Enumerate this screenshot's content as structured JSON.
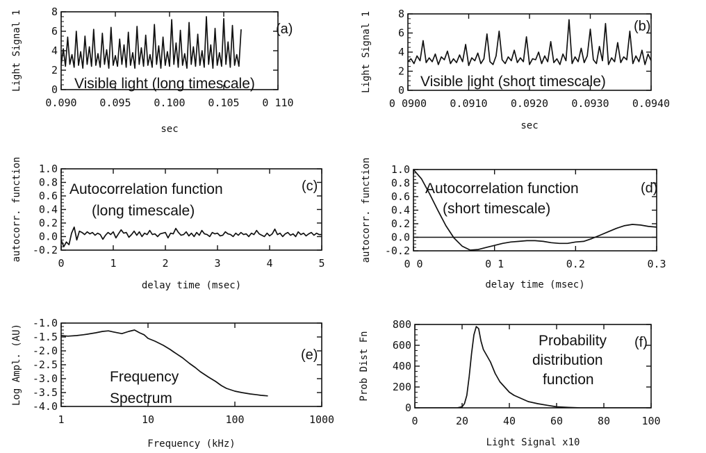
{
  "chart_data": [
    {
      "id": "a",
      "type": "line",
      "panel_label": "(a)",
      "annotation": [
        "Visible light (long timescale)"
      ],
      "xlabel": "sec",
      "ylabel": "Light Signal 1",
      "xlim": [
        0.09,
        0.11
      ],
      "ylim": [
        0,
        8
      ],
      "xticks": [
        "0.090",
        "0.095",
        "0.100",
        "0.105",
        "0 110"
      ],
      "xtickvals": [
        0.09,
        0.095,
        0.1,
        0.105,
        0.11
      ],
      "yticks": [
        "0",
        "2",
        "4",
        "6",
        "8"
      ],
      "ytickvals": [
        0,
        2,
        4,
        6,
        8
      ],
      "series": [
        {
          "x": [
            0.09,
            0.0902,
            0.0904,
            0.0906,
            0.0908,
            0.091,
            0.0912,
            0.0914,
            0.0916,
            0.0918,
            0.092,
            0.0922,
            0.0924,
            0.0926,
            0.0928,
            0.093,
            0.0932,
            0.0934,
            0.0936,
            0.0938,
            0.094,
            0.0942,
            0.0944,
            0.0946,
            0.0948,
            0.095,
            0.0952,
            0.0954,
            0.0956,
            0.0958,
            0.096,
            0.0962,
            0.0964,
            0.0966,
            0.0968,
            0.097,
            0.0972,
            0.0974,
            0.0976,
            0.0978,
            0.098,
            0.0982,
            0.0984,
            0.0986,
            0.0988,
            0.099,
            0.0992,
            0.0994,
            0.0996,
            0.0998,
            0.1,
            0.1002,
            0.1004,
            0.1006,
            0.1008,
            0.101,
            0.1012,
            0.1014,
            0.1016,
            0.1018,
            0.102,
            0.1022,
            0.1024,
            0.1026,
            0.1028,
            0.103,
            0.1032,
            0.1034,
            0.1036,
            0.1038,
            0.104,
            0.1042,
            0.1044,
            0.1046,
            0.1048,
            0.105,
            0.1052,
            0.1054,
            0.1056,
            0.1058,
            0.106,
            0.1062,
            0.1064,
            0.1066
          ],
          "y": [
            2.5,
            4.2,
            2.4,
            5.4,
            2.6,
            3.6,
            2.3,
            6.0,
            2.5,
            3.9,
            2.2,
            5.5,
            2.6,
            4.4,
            2.4,
            6.2,
            2.5,
            3.7,
            2.3,
            5.8,
            2.6,
            4.1,
            2.2,
            6.4,
            2.5,
            3.5,
            2.4,
            5.2,
            2.6,
            4.6,
            2.3,
            5.9,
            2.5,
            3.8,
            2.2,
            6.5,
            2.6,
            4.3,
            2.4,
            5.6,
            2.5,
            3.6,
            2.3,
            6.7,
            2.6,
            4.5,
            2.2,
            5.4,
            2.5,
            3.9,
            2.4,
            7.2,
            2.6,
            4.8,
            2.3,
            6.1,
            2.5,
            3.7,
            2.2,
            6.9,
            2.6,
            4.4,
            2.4,
            5.7,
            2.5,
            4.0,
            2.3,
            7.5,
            2.6,
            4.6,
            2.2,
            6.3,
            2.5,
            3.8,
            2.4,
            7.3,
            2.6,
            4.9,
            2.3,
            6.6,
            2.5,
            3.6,
            2.4,
            6.2
          ]
        }
      ]
    },
    {
      "id": "b",
      "type": "line",
      "panel_label": "(b)",
      "annotation": [
        "Visible light (short timescale)"
      ],
      "xlabel": "sec",
      "ylabel": "Light Signal 1",
      "xlim": [
        0.09,
        0.094
      ],
      "ylim": [
        0,
        8
      ],
      "xticks": [
        "0 0900",
        "0.0910",
        "0.0920",
        "0.0930",
        "0.0940"
      ],
      "xtickvals": [
        0.09,
        0.091,
        0.092,
        0.093,
        0.094
      ],
      "yticks": [
        "0",
        "2",
        "4",
        "6",
        "8"
      ],
      "ytickvals": [
        0,
        2,
        4,
        6,
        8
      ],
      "series": [
        {
          "x": [
            0.09,
            0.09005,
            0.0901,
            0.09015,
            0.0902,
            0.09025,
            0.0903,
            0.09035,
            0.0904,
            0.09045,
            0.0905,
            0.09055,
            0.0906,
            0.09065,
            0.0907,
            0.09075,
            0.0908,
            0.09085,
            0.0909,
            0.09095,
            0.091,
            0.09105,
            0.0911,
            0.09115,
            0.0912,
            0.09125,
            0.0913,
            0.09135,
            0.0914,
            0.09145,
            0.0915,
            0.09155,
            0.0916,
            0.09165,
            0.0917,
            0.09175,
            0.0918,
            0.09185,
            0.0919,
            0.09195,
            0.092,
            0.09205,
            0.0921,
            0.09215,
            0.0922,
            0.09225,
            0.0923,
            0.09235,
            0.0924,
            0.09245,
            0.0925,
            0.09255,
            0.0926,
            0.09265,
            0.0927,
            0.09275,
            0.0928,
            0.09285,
            0.0929,
            0.09295,
            0.093,
            0.09305,
            0.0931,
            0.09315,
            0.0932,
            0.09325,
            0.0933,
            0.09335,
            0.0934,
            0.09345,
            0.0935,
            0.09355,
            0.0936,
            0.09365,
            0.0937,
            0.09375,
            0.0938,
            0.09385,
            0.0939,
            0.09395,
            0.094
          ],
          "y": [
            3.0,
            3.3,
            2.8,
            3.6,
            3.1,
            5.2,
            2.9,
            3.4,
            3.0,
            3.8,
            2.7,
            3.5,
            3.2,
            4.1,
            2.8,
            3.3,
            2.9,
            3.7,
            3.0,
            4.8,
            2.6,
            3.4,
            3.1,
            3.9,
            2.8,
            3.3,
            5.9,
            3.0,
            2.7,
            3.6,
            6.2,
            3.2,
            2.8,
            3.5,
            3.1,
            4.2,
            2.9,
            3.4,
            3.0,
            5.6,
            2.7,
            3.3,
            3.2,
            4.0,
            2.8,
            3.6,
            3.0,
            5.1,
            2.9,
            3.3,
            2.7,
            3.8,
            3.1,
            7.4,
            2.8,
            3.5,
            3.0,
            4.4,
            2.9,
            3.6,
            6.4,
            3.2,
            2.8,
            4.6,
            3.1,
            7.0,
            2.7,
            3.4,
            3.0,
            5.0,
            2.9,
            3.5,
            3.2,
            6.2,
            2.8,
            3.6,
            3.0,
            4.2,
            2.7,
            3.8,
            3.1
          ]
        }
      ]
    },
    {
      "id": "c",
      "type": "line",
      "panel_label": "(c)",
      "annotation": [
        "Autocorrelation function",
        "(long timescale)"
      ],
      "xlabel": "delay time (msec)",
      "ylabel": "autocorr. function",
      "xlim": [
        0,
        5
      ],
      "ylim": [
        -0.2,
        1.0
      ],
      "xticks": [
        "0",
        "1",
        "2",
        "3",
        "4",
        "5"
      ],
      "xtickvals": [
        0,
        1,
        2,
        3,
        4,
        5
      ],
      "yticks": [
        "-0.2",
        "0.0",
        "0.2",
        "0.4",
        "0.6",
        "0.8",
        "1.0"
      ],
      "ytickvals": [
        -0.2,
        0,
        0.2,
        0.4,
        0.6,
        0.8,
        1.0
      ],
      "series": [
        {
          "x": [
            0,
            0.05,
            0.1,
            0.15,
            0.2,
            0.25,
            0.3,
            0.35,
            0.4,
            0.45,
            0.5,
            0.55,
            0.6,
            0.65,
            0.7,
            0.75,
            0.8,
            0.85,
            0.9,
            0.95,
            1.0,
            1.05,
            1.1,
            1.15,
            1.2,
            1.25,
            1.3,
            1.35,
            1.4,
            1.45,
            1.5,
            1.55,
            1.6,
            1.65,
            1.7,
            1.75,
            1.8,
            1.85,
            1.9,
            1.95,
            2.0,
            2.05,
            2.1,
            2.15,
            2.2,
            2.25,
            2.3,
            2.35,
            2.4,
            2.45,
            2.5,
            2.55,
            2.6,
            2.65,
            2.7,
            2.75,
            2.8,
            2.85,
            2.9,
            2.95,
            3.0,
            3.05,
            3.1,
            3.15,
            3.2,
            3.25,
            3.3,
            3.35,
            3.4,
            3.45,
            3.5,
            3.55,
            3.6,
            3.65,
            3.7,
            3.75,
            3.8,
            3.85,
            3.9,
            3.95,
            4.0,
            4.05,
            4.1,
            4.15,
            4.2,
            4.25,
            4.3,
            4.35,
            4.4,
            4.45,
            4.5,
            4.55,
            4.6,
            4.65,
            4.7,
            4.75,
            4.8,
            4.85,
            4.9,
            4.95,
            5.0
          ],
          "y": [
            -0.05,
            -0.15,
            -0.08,
            -0.12,
            0.05,
            0.14,
            -0.05,
            0.08,
            0.06,
            0.03,
            0.07,
            0.04,
            0.06,
            0.02,
            0.05,
            0.03,
            -0.04,
            0.02,
            0.06,
            0.03,
            0.07,
            -0.02,
            0.04,
            0.1,
            0.05,
            0.06,
            -0.01,
            0.03,
            0.08,
            0.02,
            0.07,
            0.0,
            0.05,
            0.03,
            0.09,
            0.03,
            0.04,
            0.0,
            0.04,
            0.05,
            0.06,
            -0.02,
            0.05,
            0.04,
            0.12,
            0.06,
            0.02,
            0.03,
            0.07,
            0.01,
            0.05,
            0.0,
            0.06,
            0.02,
            0.09,
            0.04,
            0.03,
            0.0,
            0.06,
            0.04,
            0.05,
            0.01,
            0.02,
            0.07,
            0.04,
            0.03,
            0.0,
            0.05,
            0.02,
            0.06,
            0.03,
            0.04,
            0.0,
            0.05,
            0.03,
            0.09,
            0.04,
            0.02,
            0.0,
            0.05,
            0.01,
            0.04,
            0.11,
            0.03,
            0.05,
            0.0,
            0.04,
            0.06,
            0.02,
            0.04,
            0.0,
            0.07,
            0.03,
            0.05,
            0.01,
            0.04,
            0.06,
            0.02,
            0.05,
            0.03,
            0.03
          ]
        }
      ]
    },
    {
      "id": "d",
      "type": "line",
      "panel_label": "(d)",
      "annotation": [
        "Autocorrelation function",
        "(short timescale)"
      ],
      "xlabel": "delay time (msec)",
      "ylabel": "autocorr. function",
      "xlim": [
        0,
        0.3
      ],
      "ylim": [
        -0.2,
        1.0
      ],
      "xticks": [
        "0 0",
        "0 1",
        "0.2",
        "0.3"
      ],
      "xtickvals": [
        0,
        0.1,
        0.2,
        0.3
      ],
      "yticks": [
        "-0.2",
        "0.0",
        "0.2",
        "0.4",
        "0.6",
        "0.8",
        "1.0"
      ],
      "ytickvals": [
        -0.2,
        0,
        0.2,
        0.4,
        0.6,
        0.8,
        1.0
      ],
      "hline": 0,
      "series": [
        {
          "x": [
            0,
            0.01,
            0.02,
            0.03,
            0.04,
            0.05,
            0.06,
            0.07,
            0.08,
            0.09,
            0.1,
            0.11,
            0.12,
            0.13,
            0.14,
            0.15,
            0.16,
            0.17,
            0.18,
            0.19,
            0.2,
            0.21,
            0.22,
            0.23,
            0.24,
            0.25,
            0.26,
            0.27,
            0.28,
            0.29,
            0.3
          ],
          "y": [
            1.0,
            0.86,
            0.64,
            0.4,
            0.17,
            -0.01,
            -0.13,
            -0.19,
            -0.18,
            -0.15,
            -0.12,
            -0.09,
            -0.07,
            -0.06,
            -0.05,
            -0.05,
            -0.06,
            -0.08,
            -0.09,
            -0.09,
            -0.07,
            -0.06,
            -0.02,
            0.03,
            0.08,
            0.13,
            0.17,
            0.19,
            0.18,
            0.16,
            0.15
          ]
        }
      ]
    },
    {
      "id": "e",
      "type": "line",
      "panel_label": "(e)",
      "annotation": [
        "Frequency",
        "Spectrum"
      ],
      "xlabel": "Frequency (kHz)",
      "ylabel": "Log Ampl. (AU)",
      "xscale": "log",
      "xlim": [
        1,
        1000
      ],
      "ylim": [
        -4.0,
        -1.0
      ],
      "xticks": [
        "1",
        "10",
        "100",
        "1000"
      ],
      "xtickvals": [
        1,
        10,
        100,
        1000
      ],
      "yticks": [
        "-4.0",
        "-3.5",
        "-3.0",
        "-2.5",
        "-2.0",
        "-1.5",
        "-1.0"
      ],
      "ytickvals": [
        -4.0,
        -3.5,
        -3.0,
        -2.5,
        -2.0,
        -1.5,
        -1.0
      ],
      "series": [
        {
          "x": [
            1.0,
            1.2,
            1.5,
            1.8,
            2.0,
            2.5,
            3.0,
            3.5,
            4.0,
            5.0,
            6.0,
            7.0,
            8.0,
            9.0,
            10,
            12,
            15,
            18,
            20,
            25,
            30,
            35,
            40,
            50,
            60,
            70,
            80,
            100,
            120,
            150,
            180,
            200,
            240
          ],
          "y": [
            -1.45,
            -1.47,
            -1.45,
            -1.42,
            -1.4,
            -1.35,
            -1.3,
            -1.28,
            -1.32,
            -1.38,
            -1.3,
            -1.25,
            -1.35,
            -1.42,
            -1.55,
            -1.65,
            -1.8,
            -1.95,
            -2.05,
            -2.25,
            -2.45,
            -2.6,
            -2.75,
            -2.95,
            -3.1,
            -3.25,
            -3.35,
            -3.45,
            -3.5,
            -3.55,
            -3.58,
            -3.6,
            -3.62
          ]
        }
      ]
    },
    {
      "id": "f",
      "type": "line",
      "panel_label": "(f)",
      "annotation": [
        "Probability",
        "distribution",
        "function"
      ],
      "xlabel": "Light Signal x10",
      "ylabel": "Prob Dist Fn",
      "xlim": [
        0,
        100
      ],
      "ylim": [
        0,
        800
      ],
      "xticks": [
        "0",
        "20",
        "40",
        "60",
        "80",
        "100"
      ],
      "xtickvals": [
        0,
        20,
        40,
        60,
        80,
        100
      ],
      "yticks": [
        "0",
        "200",
        "400",
        "600",
        "800"
      ],
      "ytickvals": [
        0,
        200,
        400,
        600,
        800
      ],
      "series": [
        {
          "x": [
            0,
            18,
            20,
            21,
            22,
            23,
            24,
            25,
            26,
            27,
            28,
            29,
            30,
            32,
            34,
            36,
            38,
            40,
            42,
            45,
            48,
            52,
            56,
            60,
            65,
            70,
            80,
            90,
            100
          ],
          "y": [
            0,
            0,
            10,
            40,
            120,
            300,
            520,
            700,
            780,
            760,
            640,
            560,
            520,
            440,
            330,
            250,
            200,
            150,
            120,
            90,
            60,
            40,
            25,
            10,
            5,
            0,
            0,
            0,
            0
          ]
        }
      ]
    }
  ]
}
